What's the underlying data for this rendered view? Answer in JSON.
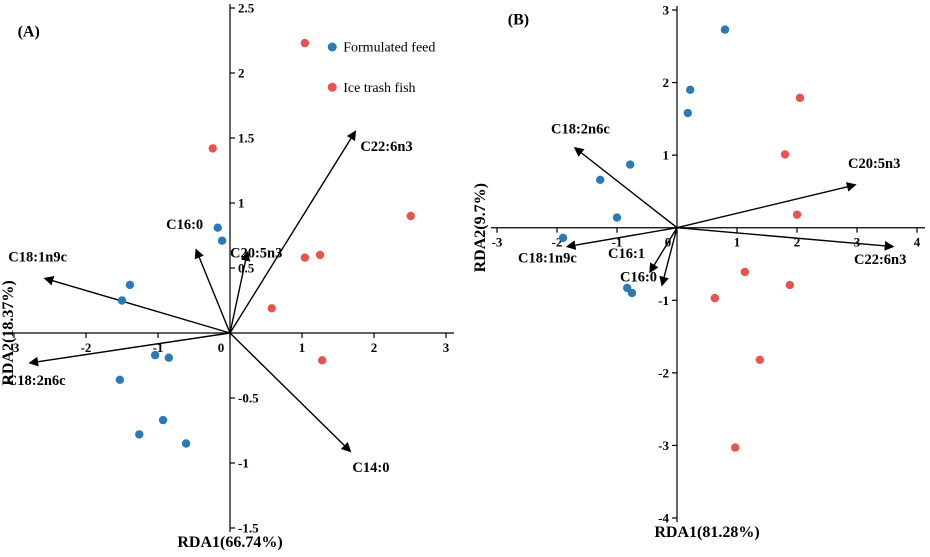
{
  "colors": {
    "formulated_feed": "#2a7ab9",
    "ice_trash_fish": "#e8534e",
    "axis": "#000000",
    "text": "#000000"
  },
  "chart_data": [
    {
      "type": "scatter",
      "panel_label": "(A)",
      "panel_label_pos": {
        "x": -2.95,
        "y": 2.28
      },
      "xlabel": "RDA1(66.74%)",
      "ylabel": "RDA2(18.37%)",
      "xlim": [
        -3,
        3
      ],
      "ylim": [
        -1.5,
        2.5
      ],
      "xticks": [
        -3,
        -2,
        -1,
        0,
        1,
        2,
        3
      ],
      "yticks": [
        -1.5,
        -1,
        -0.5,
        0.5,
        1,
        1.5,
        2,
        2.5
      ],
      "ytick_side": "right",
      "grid": false,
      "legend": {
        "x": 1.42,
        "y_start": 2.2,
        "y_step": 0.31,
        "items": [
          {
            "label": "Formulated feed",
            "color_key": "formulated_feed"
          },
          {
            "label": "Ice trash fish",
            "color_key": "ice_trash_fish"
          }
        ]
      },
      "series": [
        {
          "name": "Formulated feed",
          "color_key": "formulated_feed",
          "points": [
            [
              -0.17,
              0.81
            ],
            [
              -0.11,
              0.71
            ],
            [
              -1.39,
              0.37
            ],
            [
              -1.5,
              0.25
            ],
            [
              -1.04,
              -0.17
            ],
            [
              -0.85,
              -0.19
            ],
            [
              -1.53,
              -0.36
            ],
            [
              -0.93,
              -0.67
            ],
            [
              -1.26,
              -0.78
            ],
            [
              -0.61,
              -0.85
            ]
          ]
        },
        {
          "name": "Ice trash fish",
          "color_key": "ice_trash_fish",
          "points": [
            [
              1.04,
              2.23
            ],
            [
              -0.24,
              1.42
            ],
            [
              2.51,
              0.9
            ],
            [
              1.04,
              0.58
            ],
            [
              1.25,
              0.6
            ],
            [
              0.58,
              0.19
            ],
            [
              1.28,
              -0.21
            ]
          ]
        }
      ],
      "arrows": [
        {
          "label": "C22:6n3",
          "x": 1.74,
          "y": 1.55,
          "lx": 1.81,
          "ly": 1.4,
          "anchor": "start"
        },
        {
          "label": "C16:0",
          "x": -0.47,
          "y": 0.64,
          "lx": -0.63,
          "ly": 0.8,
          "anchor": "middle"
        },
        {
          "label": "C20:5n3",
          "x": 0.24,
          "y": 0.62,
          "lx": 0.0,
          "ly": 0.58,
          "anchor": "start"
        },
        {
          "label": "C18:1n9c",
          "x": -2.57,
          "y": 0.42,
          "lx": -3.08,
          "ly": 0.55,
          "anchor": "start"
        },
        {
          "label": "C18:2n6c",
          "x": -2.78,
          "y": -0.23,
          "lx": -3.1,
          "ly": -0.4,
          "anchor": "start"
        },
        {
          "label": "C14:0",
          "x": 1.67,
          "y": -0.91,
          "lx": 1.7,
          "ly": -1.07,
          "anchor": "start"
        }
      ]
    },
    {
      "type": "scatter",
      "panel_label": "(B)",
      "panel_label_pos": {
        "x": -2.82,
        "y": 2.8
      },
      "xlabel": "RDA1(81.28%)",
      "ylabel": "RDA2(9.7%)",
      "xlim": [
        -3,
        4
      ],
      "ylim": [
        -4,
        3
      ],
      "xticks": [
        -3,
        -2,
        -1,
        0,
        1,
        2,
        3,
        4
      ],
      "yticks": [
        -4,
        -3,
        -2,
        -1,
        1,
        2,
        3
      ],
      "ytick_side": "left",
      "grid": false,
      "series": [
        {
          "name": "Formulated feed",
          "color_key": "formulated_feed",
          "points": [
            [
              0.8,
              2.73
            ],
            [
              0.22,
              1.9
            ],
            [
              0.18,
              1.58
            ],
            [
              -0.78,
              0.87
            ],
            [
              -1.28,
              0.66
            ],
            [
              -1.0,
              0.14
            ],
            [
              -1.9,
              -0.14
            ],
            [
              -0.83,
              -0.83
            ],
            [
              -0.75,
              -0.9
            ]
          ]
        },
        {
          "name": "Ice trash fish",
          "color_key": "ice_trash_fish",
          "points": [
            [
              2.05,
              1.79
            ],
            [
              1.8,
              1.01
            ],
            [
              2.0,
              0.18
            ],
            [
              1.13,
              -0.61
            ],
            [
              1.88,
              -0.79
            ],
            [
              0.63,
              -0.97
            ],
            [
              1.38,
              -1.82
            ],
            [
              0.97,
              -3.03
            ]
          ]
        }
      ],
      "arrows": [
        {
          "label": "C18:2n6c",
          "x": -1.7,
          "y": 1.1,
          "lx": -2.1,
          "ly": 1.3,
          "anchor": "start"
        },
        {
          "label": "C20:5n3",
          "x": 2.97,
          "y": 0.59,
          "lx": 2.85,
          "ly": 0.82,
          "anchor": "start"
        },
        {
          "label": "C22:6n3",
          "x": 3.6,
          "y": -0.26,
          "lx": 2.95,
          "ly": -0.5,
          "anchor": "start"
        },
        {
          "label": "C18:1n9c",
          "x": -1.83,
          "y": -0.26,
          "lx": -2.65,
          "ly": -0.48,
          "anchor": "start"
        },
        {
          "label": "C16:1",
          "x": -0.45,
          "y": -0.61,
          "lx": -1.15,
          "ly": -0.42,
          "anchor": "start"
        },
        {
          "label": "C16:0",
          "x": -0.25,
          "y": -0.79,
          "lx": -0.95,
          "ly": -0.74,
          "anchor": "start"
        }
      ]
    }
  ]
}
